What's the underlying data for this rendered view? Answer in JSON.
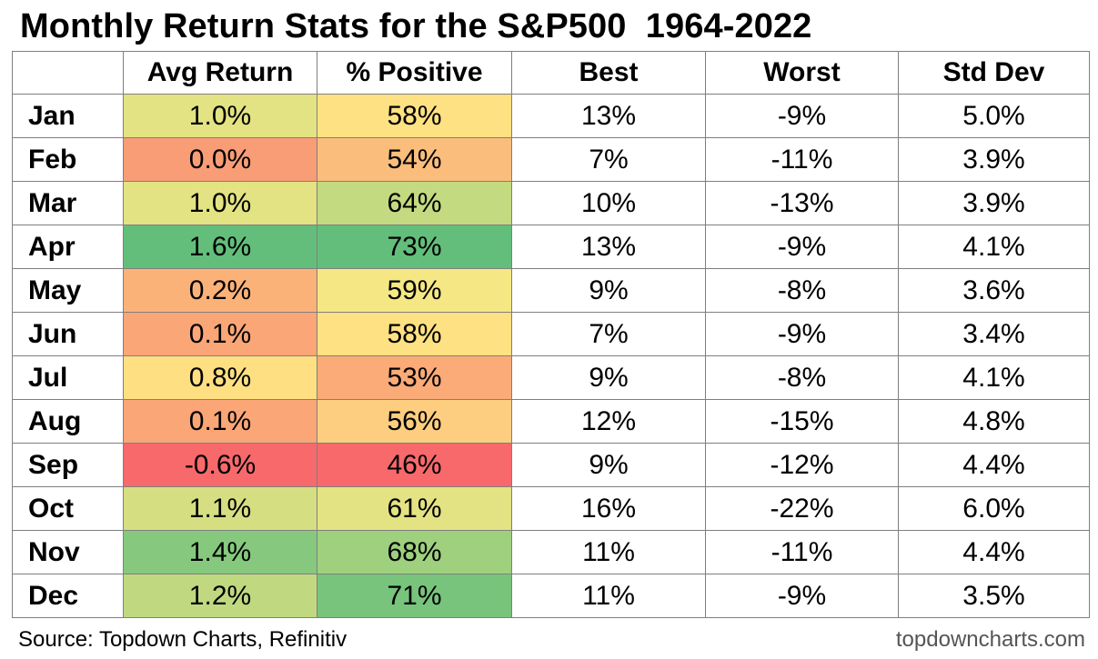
{
  "chart_data": {
    "type": "table",
    "title": "Monthly Return Stats for the S&P500  1964-2022",
    "columns": [
      "",
      "Avg Return",
      "% Positive",
      "Best",
      "Worst",
      "Std Dev"
    ],
    "rows": [
      {
        "month": "Jan",
        "avg_return": "1.0%",
        "pct_positive": "58%",
        "best": "13%",
        "worst": "-9%",
        "std_dev": "5.0%",
        "avg_color": "#E3E383",
        "pos_color": "#FEE182"
      },
      {
        "month": "Feb",
        "avg_return": "0.0%",
        "pct_positive": "54%",
        "best": "7%",
        "worst": "-11%",
        "std_dev": "3.9%",
        "avg_color": "#F99D76",
        "pos_color": "#FBBD7C"
      },
      {
        "month": "Mar",
        "avg_return": "1.0%",
        "pct_positive": "64%",
        "best": "10%",
        "worst": "-13%",
        "std_dev": "3.9%",
        "avg_color": "#E3E383",
        "pos_color": "#C4DA80"
      },
      {
        "month": "Apr",
        "avg_return": "1.6%",
        "pct_positive": "73%",
        "best": "13%",
        "worst": "-9%",
        "std_dev": "4.1%",
        "avg_color": "#63BE7B",
        "pos_color": "#63BE7B"
      },
      {
        "month": "May",
        "avg_return": "0.2%",
        "pct_positive": "59%",
        "best": "9%",
        "worst": "-8%",
        "std_dev": "3.6%",
        "avg_color": "#FBB279",
        "pos_color": "#F5E884"
      },
      {
        "month": "Jun",
        "avg_return": "0.1%",
        "pct_positive": "58%",
        "best": "7%",
        "worst": "-9%",
        "std_dev": "3.4%",
        "avg_color": "#FAA677",
        "pos_color": "#FEE182"
      },
      {
        "month": "Jul",
        "avg_return": "0.8%",
        "pct_positive": "53%",
        "best": "9%",
        "worst": "-8%",
        "std_dev": "4.1%",
        "avg_color": "#FEE082",
        "pos_color": "#FAAB78"
      },
      {
        "month": "Aug",
        "avg_return": "0.1%",
        "pct_positive": "56%",
        "best": "12%",
        "worst": "-15%",
        "std_dev": "4.8%",
        "avg_color": "#FAA677",
        "pos_color": "#FDCE7F"
      },
      {
        "month": "Sep",
        "avg_return": "-0.6%",
        "pct_positive": "46%",
        "best": "9%",
        "worst": "-12%",
        "std_dev": "4.4%",
        "avg_color": "#F8696B",
        "pos_color": "#F8696B"
      },
      {
        "month": "Oct",
        "avg_return": "1.1%",
        "pct_positive": "61%",
        "best": "16%",
        "worst": "-22%",
        "std_dev": "6.0%",
        "avg_color": "#D5DF82",
        "pos_color": "#E3E383"
      },
      {
        "month": "Nov",
        "avg_return": "1.4%",
        "pct_positive": "68%",
        "best": "11%",
        "worst": "-11%",
        "std_dev": "4.4%",
        "avg_color": "#86C97E",
        "pos_color": "#9ED07E"
      },
      {
        "month": "Dec",
        "avg_return": "1.2%",
        "pct_positive": "71%",
        "best": "11%",
        "worst": "-9%",
        "std_dev": "3.5%",
        "avg_color": "#C0D981",
        "pos_color": "#78C47C"
      }
    ]
  },
  "footer": {
    "source": "Source: Topdown Charts, Refinitiv",
    "site": "topdowncharts.com"
  }
}
